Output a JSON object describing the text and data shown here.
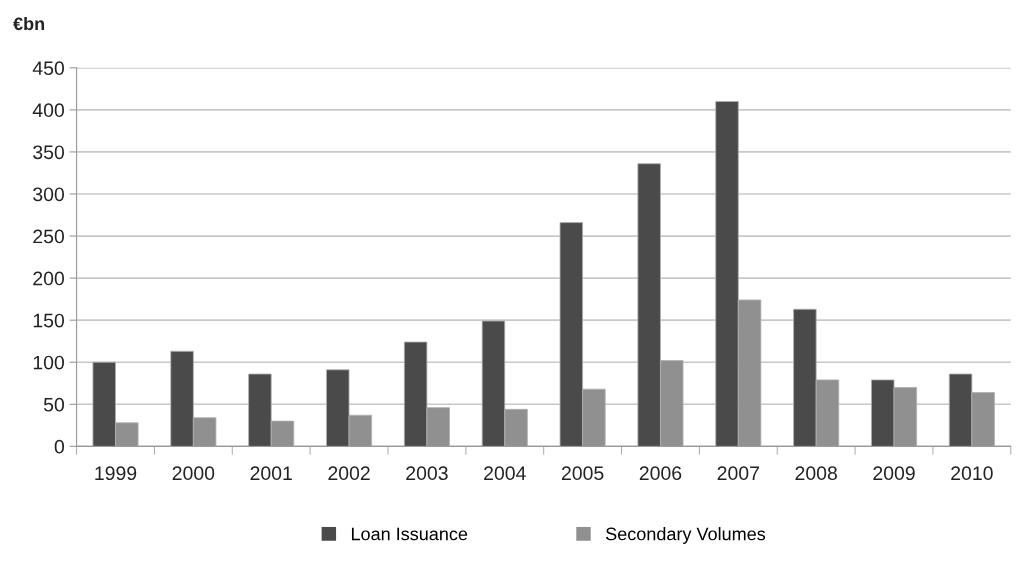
{
  "chart_data": {
    "type": "bar",
    "ylabel": "€bn",
    "categories": [
      "1999",
      "2000",
      "2001",
      "2002",
      "2003",
      "2004",
      "2005",
      "2006",
      "2007",
      "2008",
      "2009",
      "2010"
    ],
    "series": [
      {
        "name": "Loan Issuance",
        "color": "#4a4a4a",
        "values": [
          100,
          113,
          86,
          91,
          124,
          149,
          266,
          336,
          410,
          163,
          79,
          86
        ]
      },
      {
        "name": "Secondary Volumes",
        "color": "#909090",
        "values": [
          28,
          34,
          30,
          37,
          46,
          44,
          68,
          102,
          174,
          79,
          70,
          64
        ]
      }
    ],
    "ylim": [
      0,
      450
    ],
    "yticks": [
      0,
      50,
      100,
      150,
      200,
      250,
      300,
      350,
      400,
      450
    ],
    "grid": "y",
    "legend": "bottom"
  }
}
